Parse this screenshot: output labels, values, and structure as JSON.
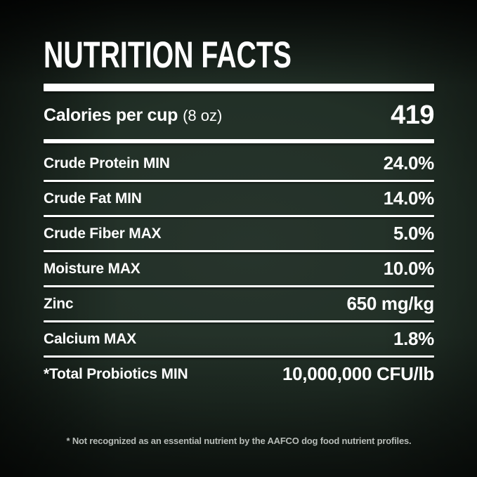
{
  "panel": {
    "title": "NUTRITION FACTS",
    "calories": {
      "label": "Calories per cup",
      "unit": "(8 oz)",
      "value": "419"
    },
    "rows": [
      {
        "label": "Crude Protein MIN",
        "value": "24.0%"
      },
      {
        "label": "Crude Fat MIN",
        "value": "14.0%"
      },
      {
        "label": "Crude Fiber MAX",
        "value": "5.0%"
      },
      {
        "label": "Moisture MAX",
        "value": "10.0%"
      },
      {
        "label": "Zinc",
        "value": "650 mg/kg"
      },
      {
        "label": "Calcium MAX",
        "value": "1.8%"
      },
      {
        "label": "*Total Probiotics MIN",
        "value": "10,000,000 CFU/lb"
      }
    ],
    "footnote": "* Not recognized as an essential nutrient by the AAFCO dog food nutrient profiles.",
    "colors": {
      "background_center": "#27342c",
      "background_edge": "#050606",
      "text": "#ffffff",
      "divider": "#ffffff",
      "footnote_text": "#b7bcb8"
    }
  }
}
